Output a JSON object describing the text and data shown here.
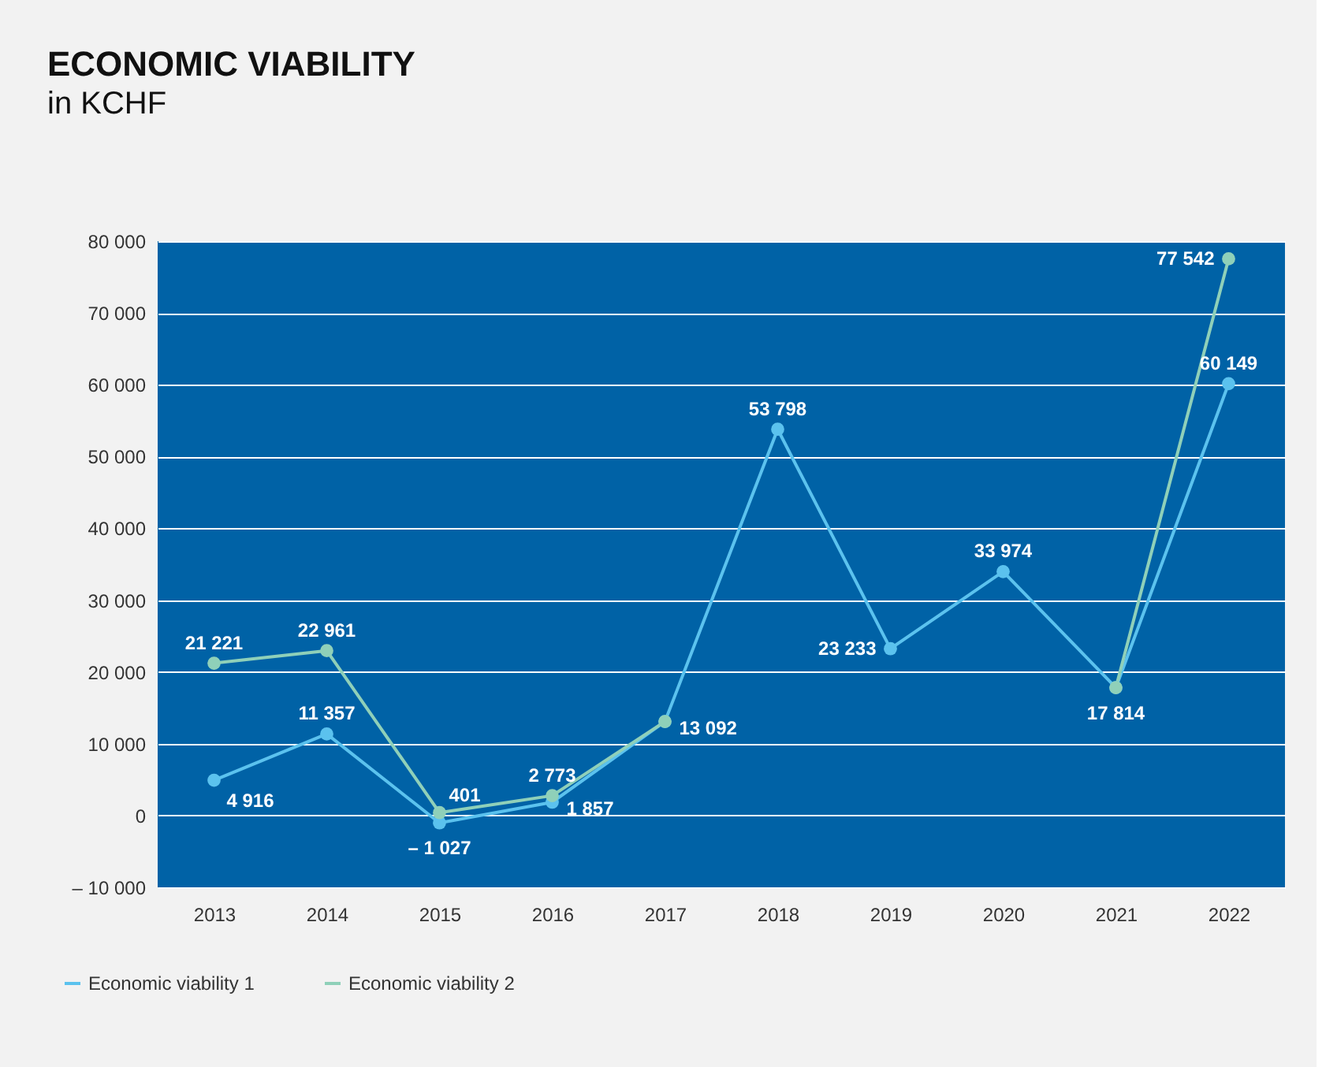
{
  "chart_data": {
    "type": "line",
    "title": "ECONOMIC VIABILITY",
    "subtitle": "in KCHF",
    "categories": [
      "2013",
      "2014",
      "2015",
      "2016",
      "2017",
      "2018",
      "2019",
      "2020",
      "2021",
      "2022"
    ],
    "series": [
      {
        "name": "Economic viability 1",
        "color": "#5bc2ee",
        "values": [
          4916,
          11357,
          -1027,
          1857,
          13092,
          53798,
          23233,
          33974,
          17814,
          60149
        ],
        "value_labels": [
          "4 916",
          "11 357",
          "– 1 027",
          "1 857",
          "13 092",
          "53 798",
          "23 233",
          "33 974",
          "17 814",
          "60 149"
        ]
      },
      {
        "name": "Economic viability 2",
        "color": "#8fd0b9",
        "values": [
          21221,
          22961,
          401,
          2773,
          13092,
          null,
          null,
          null,
          17814,
          77542
        ],
        "value_labels": [
          "21 221",
          "22 961",
          "401",
          "2 773",
          null,
          null,
          null,
          null,
          null,
          "77 542"
        ]
      }
    ],
    "ylim": [
      -10000,
      80000
    ],
    "yticks": [
      {
        "value": -10000,
        "label": "– 10 000"
      },
      0,
      {
        "value": 10000,
        "label": "10 000"
      },
      {
        "value": 20000,
        "label": "20 000"
      },
      {
        "value": 30000,
        "label": "30 000"
      },
      {
        "value": 40000,
        "label": "40 000"
      },
      {
        "value": 50000,
        "label": "50 000"
      },
      {
        "value": 60000,
        "label": "60 000"
      },
      {
        "value": 70000,
        "label": "70 000"
      },
      {
        "value": 80000,
        "label": "80 000"
      }
    ],
    "grid": "y",
    "legend": "bottom left",
    "marker": "circle",
    "line_style": "solid"
  }
}
